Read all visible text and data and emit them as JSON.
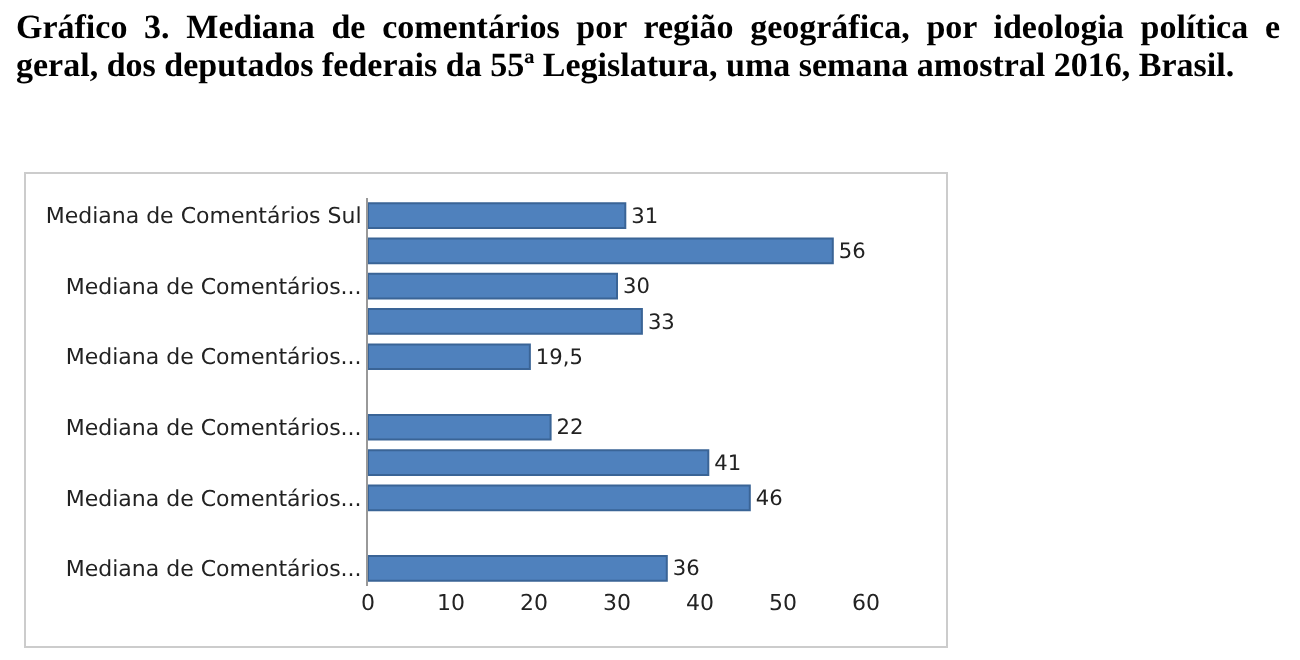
{
  "chart_data": {
    "type": "bar",
    "orientation": "horizontal",
    "title": "Gráfico 3. Mediana de comentários por região geográfica, por ideologia política e geral, dos deputados federais da 55ª Legislatura, uma semana amostral 2016, Brasil.",
    "categories": [
      "Mediana de Comentários Sul",
      null,
      "Mediana de Comentários...",
      null,
      "Mediana de Comentários...",
      null,
      "Mediana de Comentários...",
      null,
      "Mediana de Comentários...",
      null,
      "Mediana de Comentários..."
    ],
    "values": [
      31,
      56,
      30,
      33,
      19.5,
      null,
      22,
      41,
      46,
      null,
      36
    ],
    "value_labels": [
      "31",
      "56",
      "30",
      "33",
      "19,5",
      null,
      "22",
      "41",
      "46",
      null,
      "36"
    ],
    "color": "#4f81bd",
    "xlim": [
      0,
      60
    ],
    "xticks": [
      0,
      10,
      20,
      30,
      40,
      50,
      60
    ],
    "grid": false
  }
}
